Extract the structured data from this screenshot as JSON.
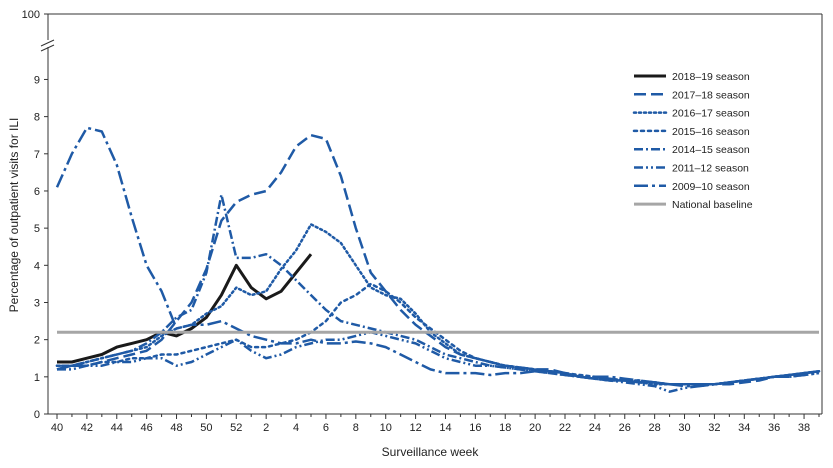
{
  "chart_data": {
    "type": "line",
    "xlabel": "Surveillance week",
    "ylabel": "Percentage of outpatient visits for ILI",
    "ylim": [
      0,
      9.9
    ],
    "y_break_label": "100",
    "y_ticks": [
      0,
      1,
      2,
      3,
      4,
      5,
      6,
      7,
      8,
      9
    ],
    "x_tick_labels": [
      "40",
      "42",
      "44",
      "46",
      "48",
      "50",
      "52",
      "2",
      "4",
      "6",
      "8",
      "10",
      "12",
      "14",
      "16",
      "18",
      "20",
      "22",
      "24",
      "26",
      "28",
      "30",
      "32",
      "34",
      "36",
      "38"
    ],
    "x_count": 52,
    "series": [
      {
        "name": "2018–19 season",
        "color": "#1a1a1a",
        "style": "solid",
        "values": [
          1.4,
          1.4,
          1.5,
          1.6,
          1.8,
          1.9,
          2.0,
          2.2,
          2.1,
          2.3,
          2.6,
          3.2,
          4.0,
          3.4,
          3.1,
          3.3,
          3.8,
          4.3
        ]
      },
      {
        "name": "2017–18 season",
        "color": "#1f5aa6",
        "style": "dash",
        "values": [
          1.2,
          1.3,
          1.3,
          1.4,
          1.5,
          1.6,
          1.7,
          2.0,
          2.5,
          3.0,
          3.9,
          5.2,
          5.7,
          5.9,
          6.0,
          6.5,
          7.2,
          7.5,
          7.4,
          6.4,
          5.0,
          3.8,
          3.3,
          2.8,
          2.4,
          2.1,
          1.8,
          1.6,
          1.5,
          1.4,
          1.3,
          1.25,
          1.2,
          1.2,
          1.1,
          1.0,
          0.95,
          0.9,
          0.9,
          0.85,
          0.85,
          0.8,
          0.8,
          0.8,
          0.8,
          0.8,
          0.85,
          0.9,
          1.0,
          1.05,
          1.1,
          1.15
        ]
      },
      {
        "name": "2016–17 season",
        "color": "#1f5aa6",
        "style": "dot",
        "values": [
          1.3,
          1.3,
          1.4,
          1.5,
          1.6,
          1.7,
          1.8,
          2.1,
          2.3,
          2.4,
          2.7,
          2.9,
          3.4,
          3.2,
          3.3,
          3.9,
          4.4,
          5.1,
          4.9,
          4.6,
          4.0,
          3.4,
          3.2,
          3.1,
          2.7,
          2.2,
          1.9,
          1.6,
          1.5,
          1.4,
          1.3,
          1.25,
          1.2,
          1.15,
          1.1,
          1.0,
          0.95,
          0.95,
          0.9,
          0.85,
          0.8,
          0.8,
          0.8,
          0.8,
          0.8,
          0.85,
          0.9,
          0.95,
          1.0,
          1.05,
          1.1,
          1.15
        ]
      },
      {
        "name": "2015–16 season",
        "color": "#1f5aa6",
        "style": "fine",
        "values": [
          1.3,
          1.3,
          1.3,
          1.4,
          1.4,
          1.5,
          1.5,
          1.6,
          1.6,
          1.7,
          1.8,
          1.9,
          2.0,
          1.8,
          1.8,
          1.9,
          2.0,
          2.2,
          2.5,
          3.0,
          3.2,
          3.5,
          3.3,
          3.0,
          2.6,
          2.3,
          2.0,
          1.7,
          1.5,
          1.4,
          1.3,
          1.25,
          1.2,
          1.15,
          1.1,
          1.05,
          1.0,
          0.95,
          0.9,
          0.9,
          0.85,
          0.8,
          0.8,
          0.8,
          0.8,
          0.85,
          0.9,
          0.95,
          1.0,
          1.05,
          1.1,
          1.15
        ]
      },
      {
        "name": "2014–15 season",
        "color": "#1f5aa6",
        "style": "dashdot",
        "values": [
          1.2,
          1.3,
          1.4,
          1.5,
          1.6,
          1.7,
          1.9,
          2.2,
          2.6,
          2.8,
          3.8,
          5.9,
          4.2,
          4.2,
          4.3,
          4.0,
          3.6,
          3.2,
          2.8,
          2.5,
          2.4,
          2.3,
          2.2,
          2.1,
          2.0,
          1.8,
          1.6,
          1.5,
          1.4,
          1.3,
          1.25,
          1.2,
          1.15,
          1.1,
          1.05,
          1.0,
          0.95,
          0.9,
          0.9,
          0.85,
          0.85,
          0.8,
          0.8,
          0.8,
          0.8,
          0.85,
          0.9,
          0.95,
          1.0,
          1.05,
          1.1,
          1.15
        ]
      },
      {
        "name": "2011–12 season",
        "color": "#1f5aa6",
        "style": "dashdotdot",
        "values": [
          1.2,
          1.2,
          1.3,
          1.3,
          1.4,
          1.4,
          1.5,
          1.5,
          1.3,
          1.4,
          1.6,
          1.8,
          2.0,
          1.7,
          1.5,
          1.6,
          1.8,
          1.9,
          2.0,
          2.0,
          2.1,
          2.2,
          2.1,
          2.0,
          1.9,
          1.7,
          1.5,
          1.4,
          1.3,
          1.3,
          1.25,
          1.2,
          1.15,
          1.1,
          1.05,
          1.0,
          0.95,
          0.9,
          0.85,
          0.8,
          0.75,
          0.6,
          0.7,
          0.75,
          0.8,
          0.85,
          0.9,
          0.95,
          1.0,
          1.0,
          1.05,
          1.1
        ]
      },
      {
        "name": "2009–10 season",
        "color": "#1f5aa6",
        "style": "longdashdot",
        "values": [
          6.1,
          7.0,
          7.7,
          7.6,
          6.7,
          5.3,
          4.0,
          3.3,
          2.3,
          2.4,
          2.4,
          2.5,
          2.3,
          2.1,
          2.0,
          1.9,
          1.9,
          2.0,
          1.9,
          1.9,
          1.95,
          1.9,
          1.8,
          1.6,
          1.4,
          1.2,
          1.1,
          1.1,
          1.1,
          1.05,
          1.1,
          1.1,
          1.15,
          1.15,
          1.1,
          1.0,
          1.0,
          1.0,
          0.95,
          0.9,
          0.85,
          0.8,
          0.75,
          0.75,
          0.8,
          0.85,
          0.9,
          0.95,
          1.0,
          1.0,
          1.05,
          1.1
        ]
      },
      {
        "name": "National baseline",
        "color": "#a6a6a6",
        "style": "baseline",
        "value": 2.2
      }
    ]
  }
}
